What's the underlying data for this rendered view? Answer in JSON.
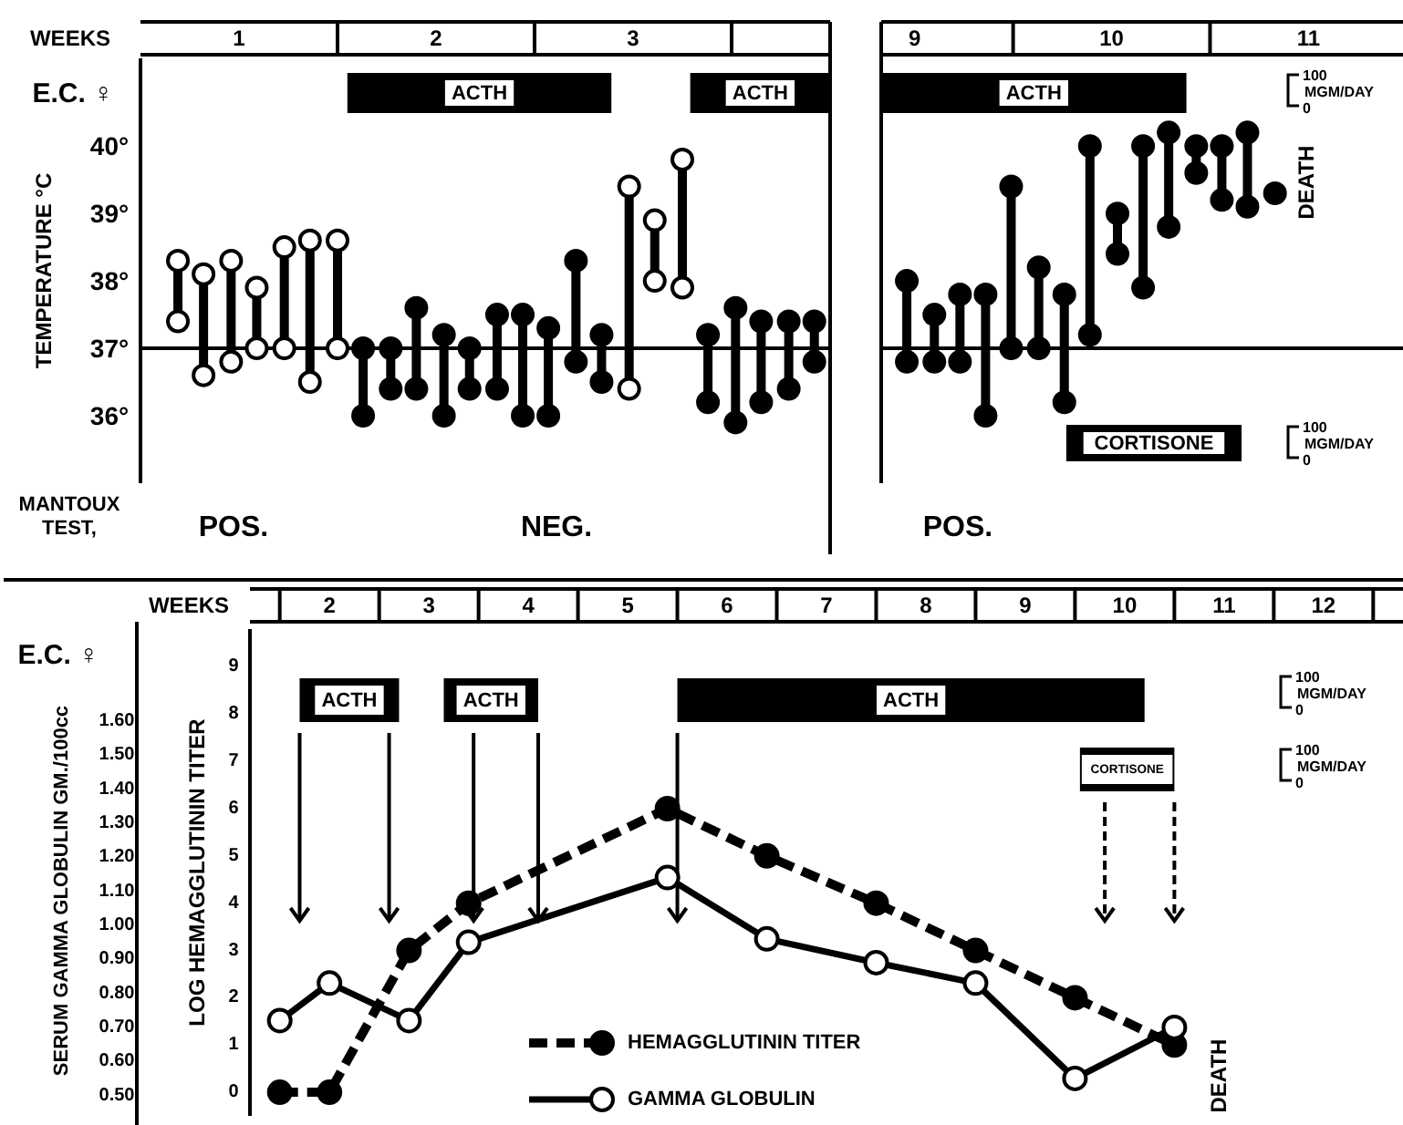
{
  "chart_data": [
    {
      "type": "scatter",
      "xlabel": "WEEKS",
      "ylabel": "TEMPERATURE °C",
      "x": [
        0.69,
        0.82,
        0.96,
        1.09,
        1.23,
        1.36,
        1.5,
        1.63,
        1.77,
        1.9,
        2.04,
        2.17,
        2.31,
        2.44,
        2.57,
        2.71,
        2.84,
        2.98,
        3.11,
        3.25,
        3.38,
        3.52,
        3.65,
        3.79,
        3.92
      ],
      "xlim": [
        0.5,
        4.0
      ],
      "xticks": [
        1,
        2,
        3
      ],
      "ylim": [
        35,
        41.3
      ],
      "yticks": [
        {
          "value": 36,
          "label": "36°"
        },
        {
          "value": 37,
          "label": "37°"
        },
        {
          "value": 38,
          "label": "38°"
        },
        {
          "value": 39,
          "label": "39°"
        },
        {
          "value": 40,
          "label": "40°"
        }
      ],
      "marker": "circle",
      "series": [
        {
          "color": "#000000",
          "values": [
            38.3,
            38.1,
            38.3,
            37.9,
            38.5,
            38.6,
            38.6,
            null,
            null,
            null,
            null,
            null,
            null,
            null,
            null,
            null,
            null,
            39.4,
            38.9,
            39.8,
            null,
            null,
            null,
            null,
            null
          ]
        },
        {
          "color": "#000000",
          "values": [
            37.4,
            36.6,
            36.8,
            37.0,
            37.0,
            36.5,
            37.0,
            null,
            null,
            null,
            null,
            null,
            null,
            null,
            null,
            null,
            null,
            36.4,
            38.0,
            37.9,
            null,
            null,
            null,
            null,
            null
          ]
        },
        {
          "color": "#000000",
          "values": [
            null,
            null,
            null,
            null,
            null,
            null,
            null,
            37.0,
            37.0,
            37.6,
            37.2,
            37.0,
            37.5,
            37.5,
            37.3,
            38.3,
            37.2,
            null,
            null,
            null,
            37.2,
            37.6,
            37.4,
            37.4,
            37.4
          ]
        },
        {
          "color": "#000000",
          "values": [
            null,
            null,
            null,
            null,
            null,
            null,
            null,
            36.0,
            36.4,
            36.4,
            36.0,
            36.4,
            36.4,
            36.0,
            36.0,
            36.8,
            36.5,
            null,
            null,
            null,
            36.2,
            35.9,
            36.2,
            36.4,
            36.8
          ]
        }
      ],
      "ref_lines": [
        {
          "axis": "y",
          "value": 37
        }
      ],
      "bands": [
        {
          "axis": "x",
          "from": 1.55,
          "to": 2.89,
          "label": "ACTH"
        },
        {
          "axis": "x",
          "from": 3.29,
          "to": 4.0,
          "label": "ACTH"
        }
      ],
      "annotations": [
        "E.C. ♀",
        "MANTOUX TEST,",
        "POS.",
        "NEG."
      ]
    },
    {
      "type": "scatter",
      "x": [
        8.96,
        9.1,
        9.23,
        9.36,
        9.49,
        9.63,
        9.76,
        9.89,
        10.03,
        10.16,
        10.29,
        10.43,
        10.56,
        10.69,
        10.83
      ],
      "xlim": [
        8.83,
        11.48
      ],
      "xticks": [
        9,
        10,
        11
      ],
      "ylim": [
        35,
        41.3
      ],
      "tick_labels": "x",
      "marker": "circle",
      "series": [
        {
          "color": "#000000",
          "values": [
            38.0,
            37.5,
            37.8,
            37.8,
            39.4,
            38.2,
            37.8,
            40.0,
            39.0,
            40.0,
            40.2,
            40.0,
            40.0,
            40.2,
            39.3
          ]
        },
        {
          "color": "#000000",
          "values": [
            36.8,
            36.8,
            36.8,
            36.0,
            37.0,
            37.0,
            36.2,
            37.2,
            38.4,
            37.9,
            38.8,
            39.6,
            39.2,
            39.1,
            null
          ]
        }
      ],
      "ref_lines": [
        {
          "axis": "y",
          "value": 37
        }
      ],
      "bands": [
        {
          "axis": "x",
          "from": 8.83,
          "to": 10.38,
          "label": "ACTH"
        },
        {
          "axis": "x",
          "from": 9.77,
          "to": 10.66,
          "label": "CORTISONE"
        }
      ],
      "annotations": [
        "POS.",
        "DEATH",
        "100 MGM/DAY 0",
        "100 MGM/DAY 0"
      ]
    },
    {
      "type": "line",
      "xlabel": "WEEKS",
      "ylabel": "LOG HEMAGGLUTININ TITER",
      "y2label": "SERUM GAMMA GLOBULIN GM./100cc",
      "x": [
        1.5,
        2.0,
        2.8,
        3.4,
        5.4,
        6.4,
        7.5,
        8.5,
        9.5,
        10.5
      ],
      "xlim": [
        1.2,
        12.8
      ],
      "xticks": [
        2,
        3,
        4,
        5,
        6,
        7,
        8,
        9,
        10,
        11,
        12
      ],
      "ylim": [
        -0.5,
        9.8
      ],
      "yticks": [
        0,
        1,
        2,
        3,
        4,
        5,
        6,
        7,
        8,
        9
      ],
      "y2lim": [
        0.44,
        1.87
      ],
      "y2ticks": [
        {
          "value": 0.5,
          "label": "0.50"
        },
        {
          "value": 0.6,
          "label": "0.60"
        },
        {
          "value": 0.7,
          "label": "0.70"
        },
        {
          "value": 0.8,
          "label": "0.80"
        },
        {
          "value": 0.9,
          "label": "0.90"
        },
        {
          "value": 1.0,
          "label": "1.00"
        },
        {
          "value": 1.1,
          "label": "1.10"
        },
        {
          "value": 1.2,
          "label": "1.20"
        },
        {
          "value": 1.3,
          "label": "1.30"
        },
        {
          "value": 1.4,
          "label": "1.40"
        },
        {
          "value": 1.5,
          "label": "1.50"
        },
        {
          "value": 1.6,
          "label": "1.60"
        }
      ],
      "marker": "circle",
      "legend": "bottom",
      "series": [
        {
          "name": "HEMAGGLUTININ TITER",
          "color": "#000000",
          "line_style": "dashed",
          "values": [
            0,
            0,
            3.0,
            4.0,
            6.0,
            5.0,
            4.0,
            3.0,
            2.0,
            1.0
          ]
        },
        {
          "name": "GAMMA GLOBULIN",
          "color": "#000000",
          "line_style": "solid",
          "axis": "y2",
          "values": [
            0.72,
            0.83,
            0.72,
            0.95,
            1.14,
            0.96,
            0.89,
            0.83,
            0.55,
            0.7
          ]
        }
      ],
      "ref_lines": [
        {
          "axis": "x",
          "value": 1.7,
          "line_style": "solid"
        },
        {
          "axis": "x",
          "value": 2.6,
          "line_style": "solid"
        },
        {
          "axis": "x",
          "value": 3.45,
          "line_style": "solid"
        },
        {
          "axis": "x",
          "value": 4.1,
          "line_style": "solid"
        },
        {
          "axis": "x",
          "value": 5.5,
          "line_style": "solid"
        },
        {
          "axis": "x",
          "value": 9.8,
          "line_style": "dashed"
        },
        {
          "axis": "x",
          "value": 10.5,
          "line_style": "dashed"
        }
      ],
      "bands": [
        {
          "axis": "x",
          "from": 1.7,
          "to": 2.7,
          "label": "ACTH"
        },
        {
          "axis": "x",
          "from": 3.15,
          "to": 4.1,
          "label": "ACTH"
        },
        {
          "axis": "x",
          "from": 5.5,
          "to": 10.2,
          "label": "ACTH"
        },
        {
          "axis": "x",
          "from": 9.55,
          "to": 10.5,
          "label": "CORTISONE"
        }
      ],
      "annotations": [
        "E.C. ♀",
        "DEATH",
        "100 MGM/DAY 0",
        "100 MGM/DAY 0"
      ]
    }
  ]
}
